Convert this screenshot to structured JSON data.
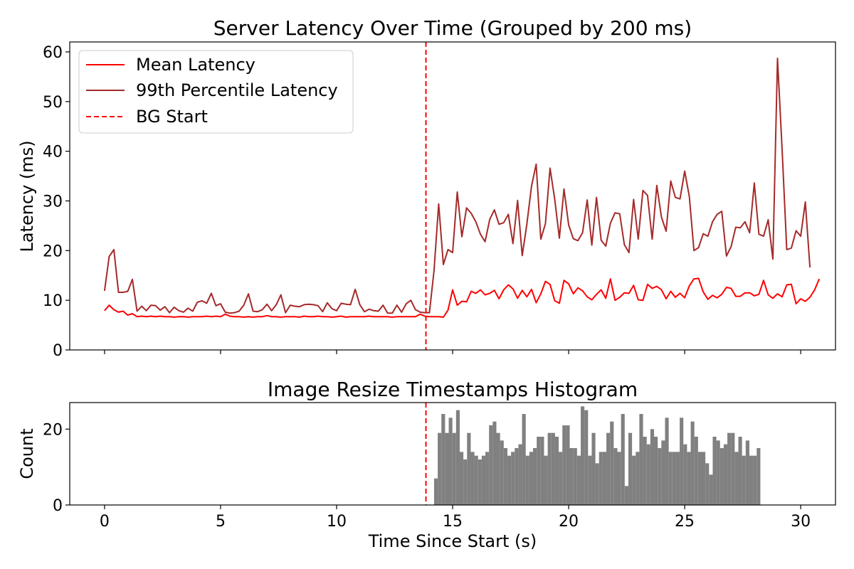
{
  "chart_data": [
    {
      "type": "line",
      "title": "Server Latency Over Time (Grouped by 200 ms)",
      "xlabel": "",
      "ylabel": "Latency (ms)",
      "xlim": [
        -1.5,
        31.5
      ],
      "ylim": [
        0,
        62
      ],
      "xticks": [
        0,
        5,
        10,
        15,
        20,
        25,
        30
      ],
      "yticks": [
        0,
        10,
        20,
        30,
        40,
        50,
        60
      ],
      "grid": false,
      "legend_position": "top-left",
      "x_step": 0.2,
      "series": [
        {
          "name": "Mean Latency",
          "color": "#ff0000",
          "style": "solid",
          "values": [
            7.9,
            9.0,
            8.1,
            7.6,
            7.8,
            7.0,
            7.3,
            6.7,
            6.8,
            6.7,
            6.8,
            6.7,
            6.8,
            6.7,
            6.7,
            6.6,
            6.7,
            6.7,
            6.6,
            6.7,
            6.7,
            6.7,
            6.8,
            6.7,
            6.8,
            6.7,
            7.2,
            6.8,
            6.7,
            6.7,
            6.6,
            6.7,
            6.6,
            6.7,
            6.7,
            6.9,
            6.7,
            6.7,
            6.6,
            6.7,
            6.7,
            6.7,
            6.6,
            6.8,
            6.7,
            6.7,
            6.8,
            6.7,
            6.7,
            6.6,
            6.7,
            6.8,
            6.6,
            6.7,
            6.7,
            6.7,
            6.7,
            6.8,
            6.7,
            6.7,
            6.7,
            6.7,
            6.6,
            6.7,
            6.7,
            6.7,
            6.7,
            6.7,
            7.2,
            6.8,
            6.7,
            6.7,
            6.7,
            6.6,
            8.0,
            12.1,
            9.0,
            9.8,
            9.7,
            11.8,
            11.4,
            12.1,
            11.1,
            11.4,
            12.0,
            10.3,
            12.1,
            13.1,
            12.3,
            10.4,
            12.0,
            10.7,
            12.2,
            9.5,
            11.3,
            13.8,
            13.2,
            9.9,
            9.4,
            14.0,
            13.3,
            11.3,
            12.5,
            11.9,
            10.7,
            10.1,
            11.2,
            12.1,
            10.4,
            14.3,
            10.0,
            10.6,
            11.5,
            11.4,
            13.0,
            10.1,
            10.0,
            13.2,
            12.4,
            12.8,
            12.1,
            10.3,
            11.8,
            10.6,
            11.4,
            10.5,
            12.9,
            14.3,
            14.4,
            11.7,
            10.2,
            11.0,
            10.5,
            11.2,
            12.6,
            12.4,
            10.8,
            10.8,
            11.5,
            11.5,
            10.9,
            11.2,
            14.0,
            11.1,
            10.4,
            11.3,
            10.7,
            13.1,
            13.2,
            9.3,
            10.3,
            9.8,
            10.6,
            12.1,
            14.3
          ]
        },
        {
          "name": "99th Percentile Latency",
          "color": "#a52a2a",
          "style": "solid",
          "values": [
            11.9,
            18.8,
            20.2,
            11.6,
            11.6,
            11.8,
            14.2,
            7.8,
            8.8,
            7.9,
            9.0,
            8.9,
            8.0,
            8.7,
            7.5,
            8.6,
            7.9,
            7.6,
            8.4,
            7.8,
            9.6,
            9.9,
            9.4,
            11.4,
            8.9,
            9.3,
            7.6,
            7.4,
            7.5,
            7.8,
            9.0,
            11.3,
            7.8,
            7.7,
            8.1,
            9.2,
            7.9,
            9.1,
            11.1,
            7.5,
            9.0,
            8.8,
            8.7,
            9.1,
            9.2,
            9.1,
            8.9,
            7.7,
            9.5,
            8.3,
            7.9,
            9.4,
            9.2,
            9.1,
            12.2,
            9.1,
            7.7,
            8.2,
            7.9,
            7.8,
            9.0,
            7.4,
            7.4,
            9.0,
            7.6,
            9.3,
            10.0,
            8.1,
            7.6,
            7.5,
            7.5,
            16.0,
            29.4,
            17.2,
            20.2,
            19.6,
            31.8,
            22.8,
            28.6,
            27.5,
            25.8,
            23.3,
            21.8,
            26.3,
            28.2,
            25.3,
            25.6,
            27.3,
            21.4,
            30.1,
            19.0,
            25.3,
            33.0,
            37.4,
            22.3,
            25.4,
            36.6,
            30.3,
            22.5,
            32.4,
            25.2,
            22.4,
            22.0,
            23.6,
            30.2,
            21.1,
            30.7,
            22.1,
            20.9,
            25.5,
            27.6,
            27.4,
            21.2,
            19.6,
            30.3,
            22.3,
            32.1,
            31.1,
            22.3,
            33.1,
            26.7,
            23.9,
            34.0,
            30.7,
            30.4,
            36.0,
            30.9,
            20.0,
            20.6,
            23.4,
            22.9,
            25.8,
            27.3,
            27.9,
            18.9,
            20.8,
            24.7,
            24.6,
            25.8,
            23.6,
            33.6,
            23.3,
            22.9,
            26.2,
            18.3,
            58.7,
            40.3,
            20.2,
            20.5,
            24.0,
            22.9,
            29.8,
            16.6
          ]
        },
        {
          "name": "BG Start",
          "color": "#ff0000",
          "style": "dashed",
          "x": 13.85
        }
      ]
    },
    {
      "type": "bar",
      "title": "Image Resize Timestamps Histogram",
      "xlabel": "Time Since Start (s)",
      "ylabel": "Count",
      "xlim": [
        -1.5,
        31.5
      ],
      "ylim": [
        0,
        27
      ],
      "xticks": [
        0,
        5,
        10,
        15,
        20,
        25,
        30
      ],
      "yticks": [
        0,
        20
      ],
      "grid": false,
      "bar_color": "#808080",
      "bins_start": 14.2,
      "bin_width": 0.158,
      "values": [
        7,
        19,
        24,
        19,
        23,
        19,
        25,
        14,
        12,
        19,
        14,
        13,
        12,
        13,
        14,
        21,
        22,
        19,
        17,
        15,
        13,
        14,
        15,
        16,
        24,
        13,
        14,
        15,
        18,
        18,
        13,
        19,
        19,
        18,
        14,
        21,
        21,
        15,
        15,
        13,
        26,
        25,
        13,
        19,
        11,
        14,
        14,
        19,
        22,
        15,
        14,
        24,
        5,
        19,
        13,
        14,
        24,
        18,
        16,
        20,
        18,
        15,
        17,
        23,
        14,
        14,
        14,
        23,
        16,
        14,
        22,
        18,
        14,
        14,
        11,
        8,
        18,
        17,
        15,
        16,
        19,
        19,
        14,
        18,
        13,
        17,
        13,
        13,
        15
      ]
    }
  ],
  "legend": [
    {
      "label": "Mean Latency",
      "color": "#ff0000",
      "style": "solid"
    },
    {
      "label": "99th Percentile Latency",
      "color": "#a52a2a",
      "style": "solid"
    },
    {
      "label": "BG Start",
      "color": "#ff0000",
      "style": "dashed"
    }
  ],
  "tick_labels": {
    "top_y": [
      "0",
      "10",
      "20",
      "30",
      "40",
      "50",
      "60"
    ],
    "bottom_y": [
      "0",
      "20"
    ],
    "x": [
      "0",
      "5",
      "10",
      "15",
      "20",
      "25",
      "30"
    ]
  }
}
